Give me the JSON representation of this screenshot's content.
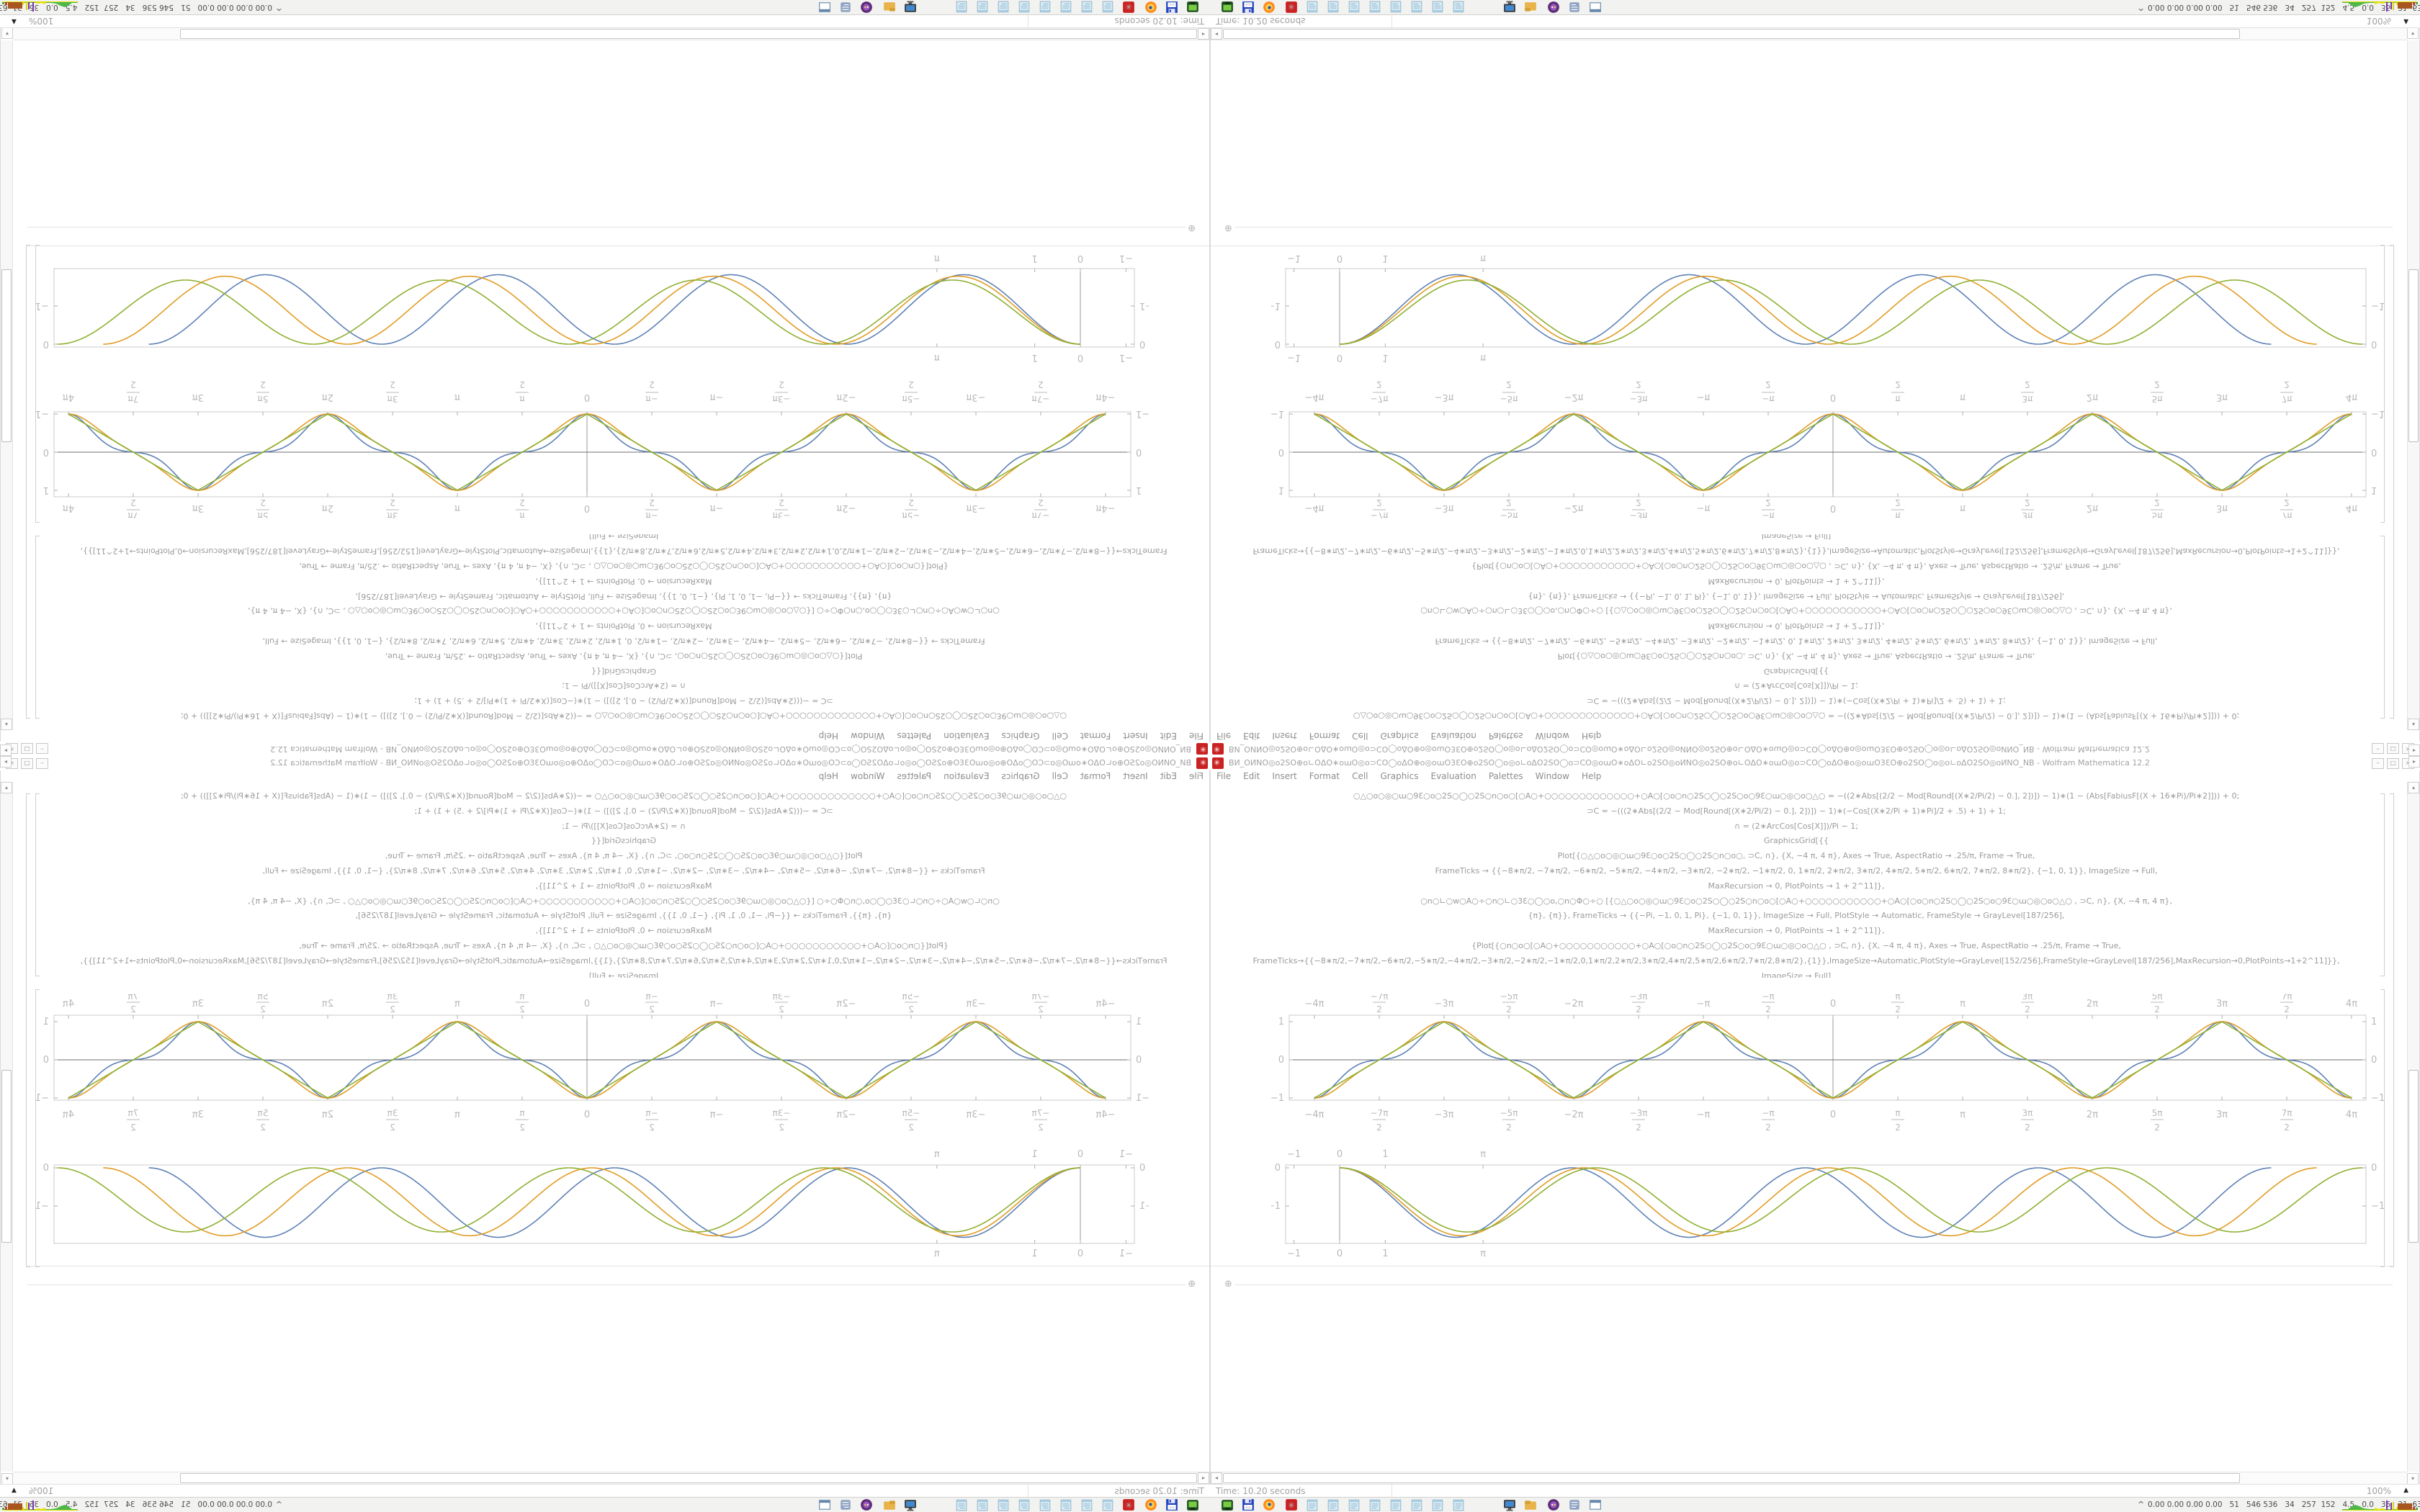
{
  "window": {
    "icon": "mathematica-red-gear",
    "title_garbled": "ВИ_ОИNО◎o2SO⊕o∟OΔO∗oɯO◎o⊃CO◯oΔO⊕o◎oɯO3ƐO⊕o2SO◯o◎o∟oΔO2SO◯o⊃CO◎oɯO∗oΔO∟o2SO◎oИNO◎o2SO⊕o∟OΔO∗oɯO◎o⊃CO◯oΔO⊕o◎oɯO3ƐO⊕o2SO◯o◎o∟oΔO2SO◎oИNO_NB",
    "title_suffix": " - Wolfram Mathematica 12.2",
    "buttons": [
      "–",
      "□",
      "×"
    ]
  },
  "menu": {
    "items": [
      "File",
      "Edit",
      "Insert",
      "Format",
      "Cell",
      "Graphics",
      "Evaluation",
      "Palettes",
      "Window",
      "Help"
    ]
  },
  "code_lines": [
    "○△○o○◎○ɯ○9Ɛ○o○2S○◯○2S○n○o○[○Α○+○○○○○○○○○○○○○+○Α○[○o○n○2S○◯○2S○o○9Ɛ○ɯ○◎○o○△○  = −((2∗Abs[(2/2 − Mod[Round[(X∗2/Pi/2) − 0.], 2])]) − 1)∗(1 − (Abs[FabiusF[(X + 16∗Pi)/Pi∗2]])) + 0;",
    "⊃C = −(((2∗Abs[(2/2 − Mod[Round[(X∗2/Pi/2) − 0.], 2])]) − 1)∗(−Cos[(X∗2/Pi + 1)∗Pi]/2 + .5) + 1) + 1;",
    "∩ = (2∗ArcCos[Cos[X]])/Pi  − 1;",
    "GraphicsGrid[{{",
    "Plot[{○△○o○◎○ɯ○9Ɛ○o○2S○◯○2S○n○o○, ⊃C, ∩}, {X, −4 π, 4 π}, Axes → True, AspectRatio → .25/π, Frame → True,",
    "FrameTicks → {{−8∗π/2, −7∗π/2, −6∗π/2, −5∗π/2, −4∗π/2, −3∗π/2, −2∗π/2, −1∗π/2, 0, 1∗π/2, 2∗π/2, 3∗π/2, 4∗π/2, 5∗π/2, 6∗π/2, 7∗π/2, 8∗π/2}, {−1, 0, 1}}, ImageSize → Full,",
    "MaxRecursion → 0, PlotPoints → 1 + 2^11]},",
    "○n○∟○w○Α○÷○n○∟○3Ɛ○◯○o,○n○Φ○÷○  [{○△○o○◎○ɯ○9Ɛ○o○2S○◯○2S○n○o○[○Α○+○○○○○○○○○○○+○Α○[○o○n○2S○◯○2S○o○9Ɛ○ɯ○◎○o○△○ , ⊃C, ∩}, {X, −4 π, 4 π},",
    "{π}, {π}}, FrameTicks → {{−Pi, −1, 0, 1, Pi}, {−1, 0, 1}}, ImageSize → Full, PlotStyle → Automatic, FrameStyle → GrayLevel[187/256],",
    "MaxRecursion → 0, PlotPoints → 1 + 2^11]},",
    "{Plot[{○n○o○[○Α○+○○○○○○○○○○○+○Α○[○o○n○2S○◯○2S○o○9Ɛ○ɯ○◎○o○△○ , ⊃C, ∩}, {X, −4 π, 4 π}, Axes → True, AspectRatio → .25/π, Frame → True,",
    "FrameTicks→{{−8∗π/2,−7∗π/2,−6∗π/2,−5∗π/2,−4∗π/2,−3∗π/2,−2∗π/2,−1∗π/2,0,1∗π/2,2∗π/2,3∗π/2,4∗π/2,5∗π/2,6∗π/2,7∗π/2,8∗π/2},{1}},ImageSize→Automatic,PlotStyle→GrayLevel[152/256],FrameStyle→GrayLevel[187/256],MaxRecursion→0,PlotPoints→1+2^11]}},",
    "ImageSize → Full]"
  ],
  "cell_ui": {
    "insert_plus": "⊕"
  },
  "scrollbars": {
    "up": "▴",
    "down": "▾",
    "left": "◂",
    "right": "▸"
  },
  "status": {
    "time": "Time: 10.20 seconds",
    "zoom": "100%",
    "zoom_arrow": "▲"
  },
  "taskbar": {
    "launcher_icons": [
      "vm",
      "floppy",
      "firefox",
      "mathematica",
      "note",
      "note",
      "note",
      "note",
      "note",
      "note",
      "note",
      "note",
      "monitor",
      "folder",
      "tor",
      "scroll",
      "window"
    ],
    "tray_chevron": "^",
    "tray_stats": "0.00 0.00 0.00 0.00   51   546 536   34   257  152   4.5   0.0   35   31  63286910"
  },
  "chart_data": [
    {
      "type": "line",
      "id": "pi-waveforms",
      "title": "",
      "xlabel": "",
      "ylabel": "",
      "x_range": [
        -12.566,
        12.566
      ],
      "y_range": [
        -1.17,
        1.22
      ],
      "x_ticks": [
        "−4π",
        "−7π/2",
        "−3π",
        "−5π/2",
        "−2π",
        "−3π/2",
        "−π",
        "−π/2",
        "0",
        "π/2",
        "π",
        "3π/2",
        "2π",
        "5π/2",
        "3π",
        "7π/2",
        "4π"
      ],
      "x_tick_values": [
        -12.566,
        -10.996,
        -9.425,
        -7.854,
        -6.283,
        -4.712,
        -3.142,
        -1.571,
        0,
        1.571,
        3.142,
        4.712,
        6.283,
        7.854,
        9.425,
        10.996,
        12.566
      ],
      "y_ticks": [
        "1",
        "0",
        "−1"
      ],
      "y_tick_values": [
        1,
        0,
        -1
      ],
      "frame": true,
      "axes": true,
      "grid": false,
      "legend": "none",
      "series": [
        {
          "name": "smooth-flat-crossing-wave",
          "color": "#5e81b5",
          "kind": "warped_cos",
          "warp": 0.45,
          "period": "2π",
          "min_at": "0, ±2π, ±4π",
          "max_at": "±π, ±3π",
          "amplitude": 1
        },
        {
          "name": "intermediate-wave",
          "color": "#e19c24",
          "kind": "warped_cos",
          "warp": 0.2,
          "period": "2π",
          "amplitude": 1
        },
        {
          "name": "triangle-wave",
          "color": "#8fb032",
          "kind": "triangle",
          "period": "2π",
          "amplitude": 1
        }
      ]
    },
    {
      "type": "line",
      "id": "cosine-dips",
      "title": "",
      "xlabel": "",
      "ylabel": "",
      "x_range": [
        -1.18,
        22.48
      ],
      "y_range": [
        -1.98,
        0.08
      ],
      "x_ticks": [
        "−1",
        "0",
        "1",
        "π"
      ],
      "x_tick_values": [
        -1,
        0,
        1,
        3.1416
      ],
      "y_ticks": [
        "0",
        "−1"
      ],
      "y_tick_values": [
        0,
        -1
      ],
      "frame": true,
      "axes": true,
      "grid": false,
      "legend": "none",
      "series": [
        {
          "name": "blue-dip",
          "color": "#5e81b5",
          "kind": "cos_dip",
          "period": 5.1,
          "depth": 1.82,
          "cycles": 4,
          "start": 0
        },
        {
          "name": "orange-dip",
          "color": "#e19c24",
          "kind": "cos_dip",
          "period": 5.35,
          "depth": 1.78,
          "cycles": 4,
          "start": 0
        },
        {
          "name": "green-dip",
          "color": "#8fb032",
          "kind": "cos_dip",
          "period": 5.6,
          "depth": 1.68,
          "cycles": 4,
          "start": 0
        }
      ]
    }
  ]
}
